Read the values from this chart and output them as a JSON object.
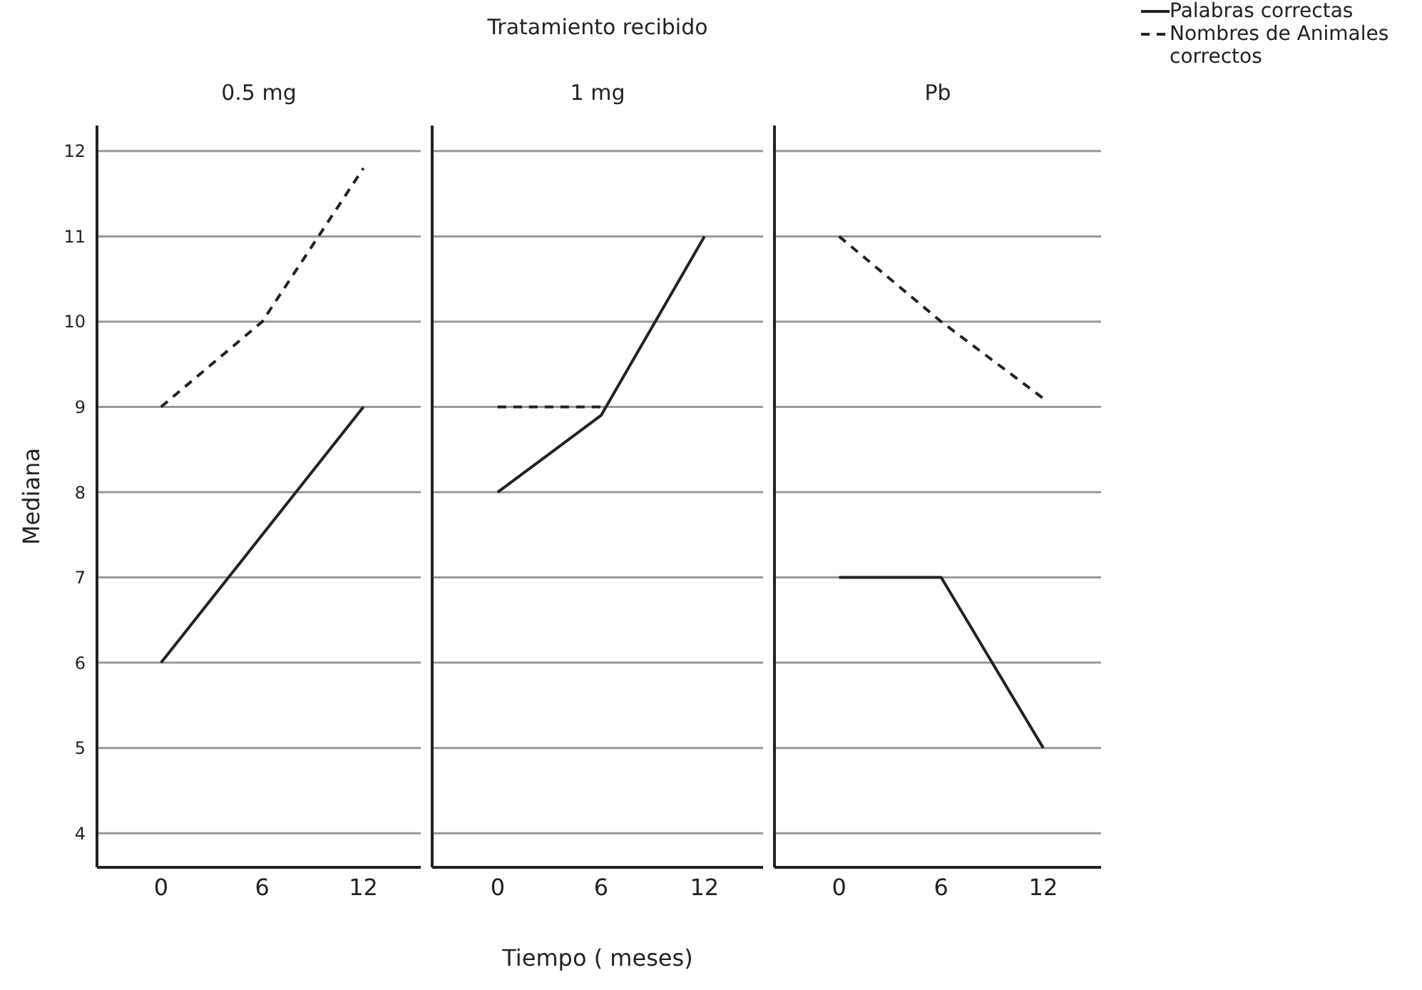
{
  "chart_data": [
    {
      "type": "line",
      "subtitle": "0.5 mg",
      "ylabel": "Mediana",
      "legend": "top right",
      "xlim": [
        -3.8,
        15.4
      ],
      "xticks": [
        0,
        6,
        12
      ],
      "ylim": [
        3.6,
        12.3
      ],
      "yticks": [
        4,
        5,
        6,
        7,
        8,
        9,
        10,
        11,
        12
      ],
      "grid": "y",
      "series": [
        {
          "name": "Palabras correctas",
          "color": "#222222",
          "line_style": "solid",
          "x": [
            0,
            6,
            12
          ],
          "values": [
            6,
            7.5,
            9
          ]
        },
        {
          "name": "Nombres de Animales correctos",
          "color": "#222222",
          "line_style": "dashed",
          "x": [
            0,
            6,
            12
          ],
          "values": [
            9,
            10,
            11.8
          ]
        }
      ]
    },
    {
      "type": "line",
      "title": "Tratamiento recibido",
      "subtitle": "1 mg",
      "xlabel": "Tiempo ( meses)",
      "xlim": [
        -3.8,
        15.4
      ],
      "xticks": [
        0,
        6,
        12
      ],
      "ylim": [
        3.6,
        12.3
      ],
      "yticks": [
        4,
        5,
        6,
        7,
        8,
        9,
        10,
        11,
        12
      ],
      "grid": "y",
      "tick_labels": "x",
      "series": [
        {
          "color": "#222222",
          "line_style": "solid",
          "x": [
            0,
            6,
            12
          ],
          "values": [
            8,
            8.9,
            11
          ]
        },
        {
          "color": "#222222",
          "line_style": "dashed",
          "x": [
            0,
            6
          ],
          "values": [
            9,
            9
          ]
        }
      ]
    },
    {
      "type": "line",
      "subtitle": "Pb",
      "xlim": [
        -3.8,
        15.4
      ],
      "xticks": [
        0,
        6,
        12
      ],
      "ylim": [
        3.6,
        12.3
      ],
      "yticks": [
        4,
        5,
        6,
        7,
        8,
        9,
        10,
        11,
        12
      ],
      "grid": "y",
      "tick_labels": "x",
      "series": [
        {
          "color": "#222222",
          "line_style": "solid",
          "x": [
            0,
            6,
            12
          ],
          "values": [
            7,
            7,
            5
          ]
        },
        {
          "color": "#222222",
          "line_style": "dashed",
          "x": [
            0,
            6,
            12
          ],
          "values": [
            11,
            10,
            9.1
          ]
        }
      ]
    }
  ]
}
